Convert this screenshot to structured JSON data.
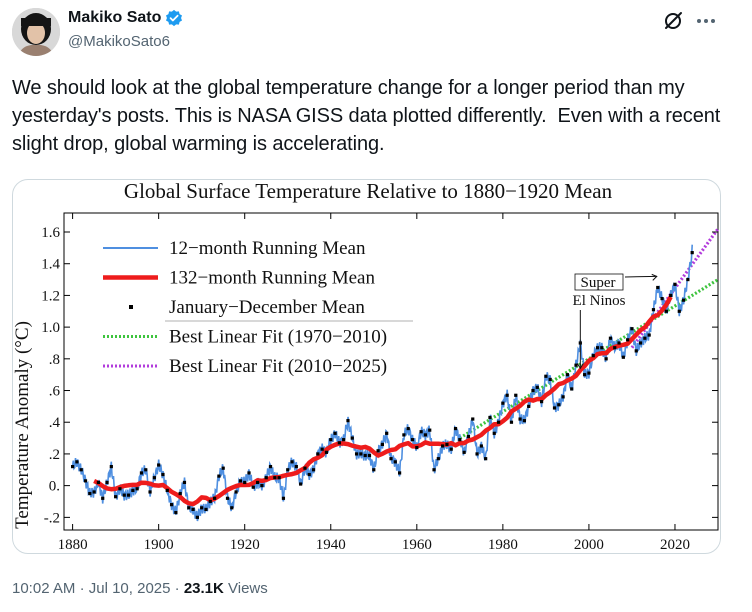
{
  "post": {
    "author_name": "Makiko Sato",
    "author_handle": "@MakikoSato6",
    "text": "We should look at the global temperature change for a longer period than my yesterday's posts. This is NASA GISS data plotted differently.  Even with a recent slight drop, global warming is accelerating.",
    "time": "10:02 AM",
    "sep1": "·",
    "date": "Jul 10, 2025",
    "sep2": "·",
    "views_count": "23.1K",
    "views_label": "Views"
  },
  "icons": {
    "verified": "verified-badge-icon",
    "grok": "grok-icon",
    "more": "more-icon"
  },
  "colors": {
    "verified_blue": "#1d9bf0",
    "text": "#0f1419",
    "secondary": "#536471",
    "series_12": "#4f8fe0",
    "series_132": "#ee1c1c",
    "fit_1970": "#3ec43e",
    "fit_2010": "#b23cdc"
  },
  "chart_data": {
    "type": "line",
    "title": "Global Surface Temperature Relative to 1880−1920 Mean",
    "xlabel": "",
    "ylabel": "Temperature Anomaly (°C)",
    "xlim": [
      1878,
      2030
    ],
    "ylim": [
      -0.28,
      1.72
    ],
    "x_ticks": [
      "1880",
      "1900",
      "1920",
      "1940",
      "1960",
      "1980",
      "2000",
      "2020"
    ],
    "y_ticks": [
      "-.2",
      "0.",
      ".2",
      ".4",
      ".6",
      ".8",
      "1.0",
      "1.2",
      "1.4",
      "1.6"
    ],
    "legend": {
      "placement": "top-left",
      "entries": [
        "12−month Running Mean",
        "132−month Running Mean",
        "January−December Mean",
        "Best Linear Fit (1970−2010)",
        "Best Linear Fit (2010−2025)"
      ]
    },
    "annotations": [
      {
        "text_line1": "Super",
        "text_line2": "El Ninos",
        "targets_x": [
          1998,
          2016
        ]
      }
    ],
    "annual_mean": {
      "x": [
        1880,
        1881,
        1882,
        1883,
        1884,
        1885,
        1886,
        1887,
        1888,
        1889,
        1890,
        1891,
        1892,
        1893,
        1894,
        1895,
        1896,
        1897,
        1898,
        1899,
        1900,
        1901,
        1902,
        1903,
        1904,
        1905,
        1906,
        1907,
        1908,
        1909,
        1910,
        1911,
        1912,
        1913,
        1914,
        1915,
        1916,
        1917,
        1918,
        1919,
        1920,
        1921,
        1922,
        1923,
        1924,
        1925,
        1926,
        1927,
        1928,
        1929,
        1930,
        1931,
        1932,
        1933,
        1934,
        1935,
        1936,
        1937,
        1938,
        1939,
        1940,
        1941,
        1942,
        1943,
        1944,
        1945,
        1946,
        1947,
        1948,
        1949,
        1950,
        1951,
        1952,
        1953,
        1954,
        1955,
        1956,
        1957,
        1958,
        1959,
        1960,
        1961,
        1962,
        1963,
        1964,
        1965,
        1966,
        1967,
        1968,
        1969,
        1970,
        1971,
        1972,
        1973,
        1974,
        1975,
        1976,
        1977,
        1978,
        1979,
        1980,
        1981,
        1982,
        1983,
        1984,
        1985,
        1986,
        1987,
        1988,
        1989,
        1990,
        1991,
        1992,
        1993,
        1994,
        1995,
        1996,
        1997,
        1998,
        1999,
        2000,
        2001,
        2002,
        2003,
        2004,
        2005,
        2006,
        2007,
        2008,
        2009,
        2010,
        2011,
        2012,
        2013,
        2014,
        2015,
        2016,
        2017,
        2018,
        2019,
        2020,
        2021,
        2022,
        2023,
        2024
      ],
      "y": [
        0.12,
        0.15,
        0.1,
        0.03,
        -0.05,
        -0.04,
        0.02,
        -0.08,
        0.02,
        0.12,
        -0.07,
        -0.02,
        -0.06,
        -0.06,
        -0.03,
        -0.02,
        0.08,
        0.1,
        -0.04,
        0.05,
        0.13,
        0.07,
        -0.03,
        -0.12,
        -0.17,
        -0.05,
        0.02,
        -0.14,
        -0.15,
        -0.2,
        -0.14,
        -0.15,
        -0.1,
        -0.08,
        0.06,
        0.11,
        -0.08,
        -0.14,
        -0.04,
        0.03,
        0.02,
        0.08,
        -0.01,
        0.02,
        0.0,
        0.05,
        0.12,
        0.05,
        0.05,
        -0.08,
        0.1,
        0.15,
        0.12,
        0.01,
        0.11,
        0.07,
        0.1,
        0.2,
        0.23,
        0.21,
        0.29,
        0.33,
        0.27,
        0.29,
        0.41,
        0.3,
        0.2,
        0.2,
        0.19,
        0.19,
        0.1,
        0.22,
        0.26,
        0.33,
        0.17,
        0.15,
        0.08,
        0.32,
        0.36,
        0.29,
        0.24,
        0.34,
        0.32,
        0.35,
        0.1,
        0.17,
        0.25,
        0.26,
        0.23,
        0.36,
        0.29,
        0.21,
        0.31,
        0.42,
        0.2,
        0.25,
        0.17,
        0.43,
        0.33,
        0.4,
        0.52,
        0.57,
        0.4,
        0.57,
        0.42,
        0.41,
        0.5,
        0.6,
        0.62,
        0.53,
        0.69,
        0.67,
        0.49,
        0.51,
        0.56,
        0.7,
        0.61,
        0.76,
        0.9,
        0.7,
        0.71,
        0.82,
        0.87,
        0.87,
        0.8,
        0.93,
        0.87,
        0.9,
        0.81,
        0.92,
        0.99,
        0.85,
        0.9,
        0.93,
        0.95,
        1.11,
        1.25,
        1.18,
        1.1,
        1.2,
        1.27,
        1.1,
        1.17,
        1.3,
        1.47
      ]
    },
    "best_fit_1970_2010": {
      "x": [
        1970,
        2030
      ],
      "y": [
        0.3,
        1.3
      ]
    },
    "best_fit_2010_2025": {
      "x": [
        2010,
        2030
      ],
      "y": [
        0.87,
        1.62
      ]
    }
  }
}
